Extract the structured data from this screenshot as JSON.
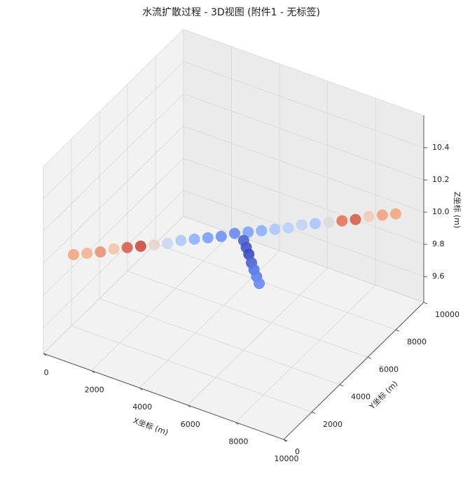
{
  "chart_data": {
    "type": "scatter3d",
    "title": "水流扩散过程 - 3D视图 (附件1 - 无标签)",
    "xlabel": "X坐标 (m)",
    "ylabel": "Y坐标 (m)",
    "zlabel": "Z坐标 (m)",
    "xlim": [
      0,
      10000
    ],
    "ylim": [
      0,
      10000
    ],
    "zlim": [
      9.44,
      10.6
    ],
    "xticks": [
      0,
      2000,
      4000,
      6000,
      8000,
      10000
    ],
    "yticks": [
      0,
      2000,
      4000,
      6000,
      8000,
      10000
    ],
    "zticks": [
      9.6,
      9.8,
      {
        "value": 10,
        "label": "10.0"
      },
      10.2,
      10.4
    ],
    "grid": true,
    "x": [
      0,
      417,
      833,
      1250,
      1667,
      2083,
      2500,
      2917,
      3333,
      3750,
      4167,
      4583,
      5000,
      5417,
      5833,
      6250,
      6667,
      7083,
      7500,
      7917,
      8333,
      8750,
      9167,
      9583,
      10000,
      5243,
      5286,
      5329,
      5371,
      5414,
      5457,
      5500
    ],
    "y": [
      2150,
      2394,
      2638,
      2881,
      3125,
      3369,
      3613,
      3856,
      4100,
      4344,
      4588,
      4831,
      5075,
      5319,
      5563,
      5806,
      6050,
      6294,
      6538,
      6781,
      7025,
      7269,
      7513,
      7756,
      8000,
      5301,
      5413,
      5524,
      5636,
      5747,
      5859,
      5970
    ],
    "z": [
      9.87,
      9.88,
      9.89,
      9.91,
      9.92,
      9.93,
      9.94,
      9.95,
      9.97,
      9.98,
      9.99,
      10.0,
      10.02,
      10.03,
      10.04,
      10.05,
      10.06,
      10.08,
      10.09,
      10.1,
      10.11,
      10.12,
      10.14,
      10.15,
      10.16,
      9.97,
      9.92,
      9.87,
      9.81,
      9.76,
      9.71,
      9.66
    ],
    "colors": [
      "#f4a582",
      "#f6b396",
      "#e8917a",
      "#f4c4ab",
      "#d6604d",
      "#cc4c3f",
      "#e8d5c9",
      "#c9d7f0",
      "#aec9fc",
      "#8fb0fe",
      "#7b9ff9",
      "#6f92f3",
      "#6a8bef",
      "#7ea1fa",
      "#8db0fe",
      "#aac7fd",
      "#b9d0f9",
      "#c0d4f5",
      "#aac7fd",
      "#dddcdc",
      "#e7745b",
      "#d6604d",
      "#f2cbb7",
      "#f2a385",
      "#f4a582",
      "#4a63d3",
      "#4257c9",
      "#3b4cc0",
      "#4a63d3",
      "#5977e3",
      "#6180e9",
      "#6a8bef"
    ]
  }
}
